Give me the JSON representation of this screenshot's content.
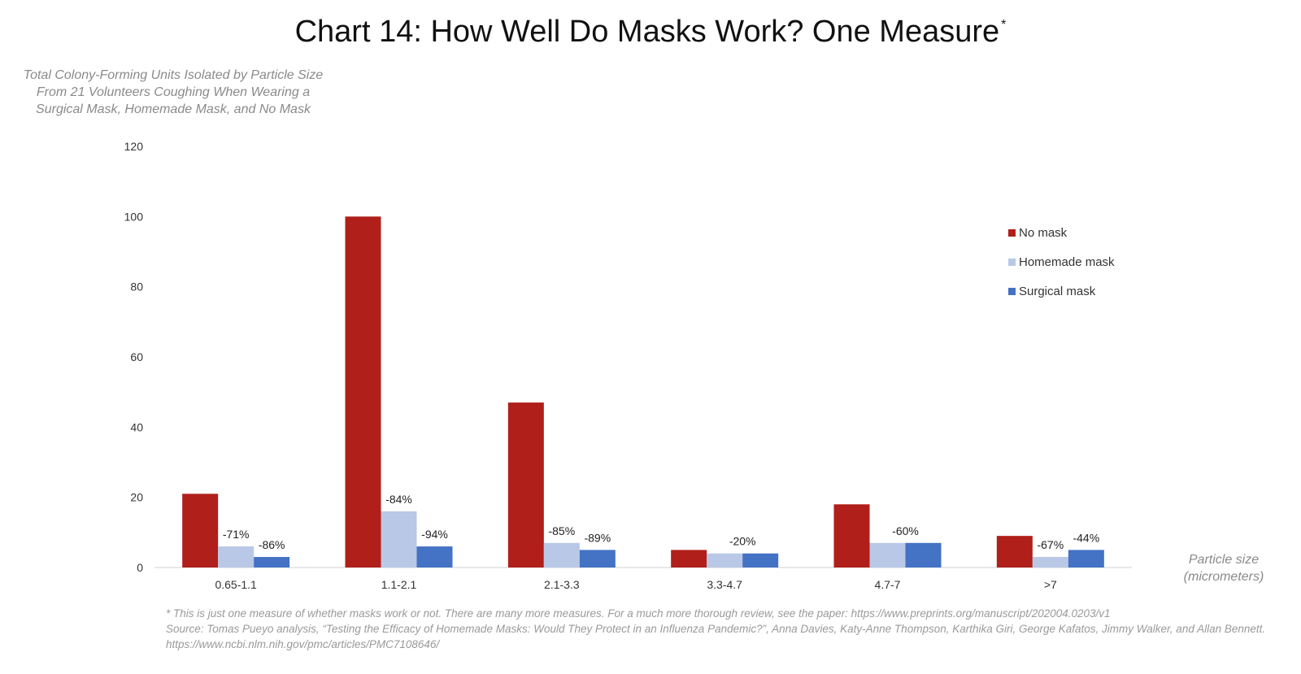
{
  "title": "Chart 14: How Well Do Masks Work? One Measure",
  "title_mark": "*",
  "footnotes": [
    "* This is just one measure of whether masks work or not. There are many more measures. For a much more thorough review, see the paper: https://www.preprints.org/manuscript/202004.0203/v1",
    "Source: Tomas Pueyo analysis, “Testing the Efficacy of Homemade Masks: Would They Protect in an Influenza Pandemic?”, Anna Davies, Katy-Anne Thompson, Karthika Giri, George Kafatos, Jimmy Walker, and Allan Bennett. https://www.ncbi.nlm.nih.gov/pmc/articles/PMC7108646/"
  ],
  "chart_data": {
    "type": "bar",
    "title": "Chart 14: How Well Do Masks Work? One Measure",
    "ylabel": "Total Colony-Forming Units Isolated by Particle Size\nFrom 21 Volunteers Coughing When Wearing a\nSurgical Mask, Homemade Mask, and No Mask",
    "xlabel": "Particle size\n(micrometers)",
    "categories": [
      "0.65-1.1",
      "1.1-2.1",
      "2.1-3.3",
      "3.3-4.7",
      "4.7-7",
      ">7"
    ],
    "ylim": [
      0,
      120
    ],
    "yticks": [
      0,
      20,
      40,
      60,
      80,
      100,
      120
    ],
    "grid": false,
    "legend_position": "right",
    "series": [
      {
        "name": "No mask",
        "color": "#b01f1a",
        "values": [
          21,
          100,
          47,
          5,
          18,
          9
        ],
        "labels": [
          "",
          "",
          "",
          "",
          "",
          ""
        ]
      },
      {
        "name": "Homemade mask",
        "color": "#b8c8e6",
        "values": [
          6,
          16,
          7,
          4,
          7,
          3
        ],
        "labels": [
          "-71%",
          "-84%",
          "-85%",
          "",
          "",
          "-67%"
        ]
      },
      {
        "name": "Surgical mask",
        "color": "#4472c4",
        "values": [
          3,
          6,
          5,
          4,
          7,
          5
        ],
        "labels": [
          "-86%",
          "-94%",
          "-89%",
          "",
          "",
          "-44%"
        ]
      }
    ],
    "group_labels": [
      "",
      "",
      "",
      "-20%",
      "-60%",
      ""
    ]
  }
}
